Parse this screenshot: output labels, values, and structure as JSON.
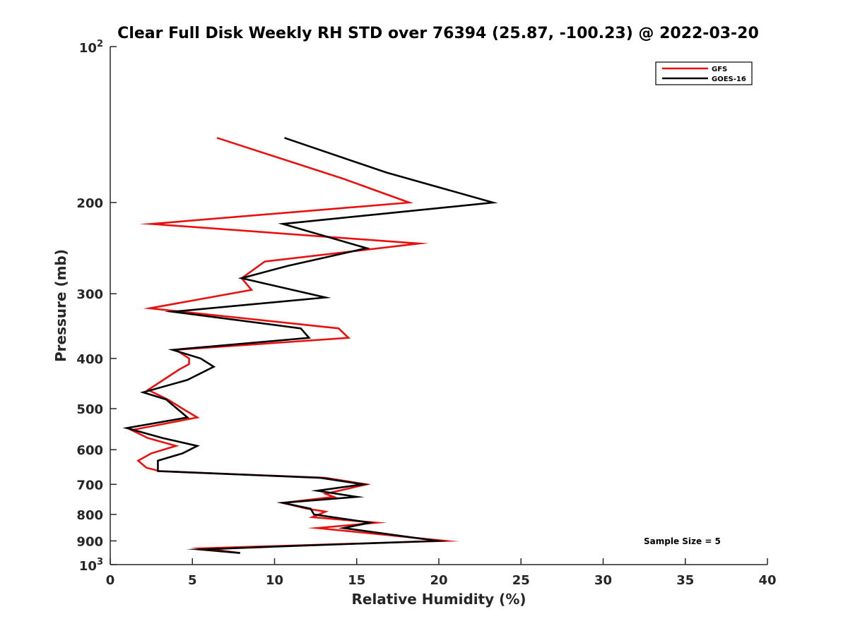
{
  "chart_data": {
    "type": "line",
    "title": "Clear Full Disk Weekly RH STD over 76394 (25.87, -100.23) @ 2022-03-20",
    "xlabel": "Relative Humidity (%)",
    "ylabel": "Pressure (mb)",
    "xlim": [
      0,
      40
    ],
    "ylim": [
      100,
      1000
    ],
    "y_scale": "log",
    "y_reversed": true,
    "x_ticks": [
      0,
      5,
      10,
      15,
      20,
      25,
      30,
      35,
      40
    ],
    "x_tick_labels": [
      "0",
      "5",
      "10",
      "15",
      "20",
      "25",
      "30",
      "35",
      "40"
    ],
    "y_ticks": [
      200,
      300,
      400,
      500,
      600,
      700,
      800,
      900
    ],
    "y_tick_labels": [
      "200",
      "300",
      "400",
      "500",
      "600",
      "700",
      "800",
      "900"
    ],
    "y_end_labels": [
      {
        "value": 100,
        "base": "10",
        "exp": "2"
      },
      {
        "value": 1000,
        "base": "10",
        "exp": "3"
      }
    ],
    "grid": false,
    "legend_position": "top-right",
    "annotation": "Sample Size = 5",
    "series": [
      {
        "name": "GFS",
        "color": "#e8110f",
        "points": [
          [
            6.5,
            150
          ],
          [
            14.2,
            180
          ],
          [
            18.2,
            200
          ],
          [
            2.5,
            220
          ],
          [
            18.8,
            240
          ],
          [
            9.4,
            260
          ],
          [
            8.0,
            280
          ],
          [
            8.6,
            295
          ],
          [
            2.4,
            320
          ],
          [
            13.9,
            350
          ],
          [
            14.5,
            365
          ],
          [
            4.0,
            385
          ],
          [
            4.8,
            400
          ],
          [
            4.8,
            410
          ],
          [
            4.2,
            420
          ],
          [
            2.3,
            460
          ],
          [
            3.5,
            480
          ],
          [
            4.4,
            500
          ],
          [
            5.3,
            520
          ],
          [
            1.3,
            550
          ],
          [
            2.3,
            570
          ],
          [
            4.0,
            590
          ],
          [
            2.5,
            610
          ],
          [
            1.7,
            630
          ],
          [
            2.2,
            650
          ],
          [
            3.0,
            660
          ],
          [
            13.1,
            680
          ],
          [
            15.6,
            700
          ],
          [
            13.1,
            730
          ],
          [
            13.6,
            740
          ],
          [
            10.5,
            760
          ],
          [
            12.0,
            780
          ],
          [
            13.1,
            790
          ],
          [
            12.3,
            810
          ],
          [
            16.2,
            830
          ],
          [
            12.6,
            850
          ],
          [
            20.4,
            900
          ],
          [
            5.6,
            930
          ],
          [
            7.9,
            950
          ]
        ]
      },
      {
        "name": "GOES-16",
        "color": "#000000",
        "points": [
          [
            10.6,
            150
          ],
          [
            16.8,
            175
          ],
          [
            23.3,
            200
          ],
          [
            10.5,
            220
          ],
          [
            15.6,
            245
          ],
          [
            10.8,
            265
          ],
          [
            8.0,
            280
          ],
          [
            13.1,
            305
          ],
          [
            3.8,
            325
          ],
          [
            11.6,
            350
          ],
          [
            12.1,
            365
          ],
          [
            3.8,
            385
          ],
          [
            5.5,
            400
          ],
          [
            6.3,
            415
          ],
          [
            4.7,
            440
          ],
          [
            2.0,
            465
          ],
          [
            3.4,
            480
          ],
          [
            4.7,
            520
          ],
          [
            1.0,
            545
          ],
          [
            3.2,
            570
          ],
          [
            5.3,
            590
          ],
          [
            4.4,
            610
          ],
          [
            2.9,
            630
          ],
          [
            2.9,
            660
          ],
          [
            12.8,
            680
          ],
          [
            15.4,
            700
          ],
          [
            12.6,
            720
          ],
          [
            15.0,
            740
          ],
          [
            10.5,
            760
          ],
          [
            12.2,
            780
          ],
          [
            12.4,
            800
          ],
          [
            15.8,
            830
          ],
          [
            14.2,
            850
          ],
          [
            19.9,
            900
          ],
          [
            11.3,
            920
          ],
          [
            5.5,
            935
          ],
          [
            7.9,
            950
          ]
        ]
      }
    ]
  }
}
